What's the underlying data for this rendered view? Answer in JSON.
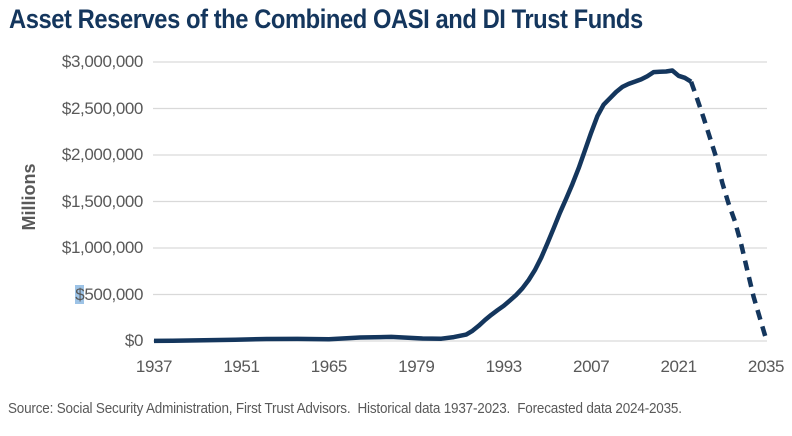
{
  "title": "Asset Reserves of the Combined OASI and DI Trust Funds",
  "source_note": "Source: Social Security Administration, First Trust Advisors.  Historical data 1937-2023.  Forecasted data 2024-2035.",
  "colors": {
    "line_navy": "#14365d",
    "title_navy": "#14365d",
    "gridline_gray": "#d9d9d9",
    "axis_text_gray": "#595959",
    "dollar_highlight_blue": "#9dc3e6"
  },
  "chart_data": {
    "type": "line",
    "title": "Asset Reserves of the Combined OASI and DI Trust Funds",
    "xlabel": "",
    "ylabel": "Millions",
    "ylim": [
      0,
      3000000
    ],
    "x_range": [
      1937,
      2035
    ],
    "grid": "horizontal",
    "legend_position": "none",
    "y_tick_values": [
      0,
      500000,
      1000000,
      1500000,
      2000000,
      2500000,
      3000000
    ],
    "y_tick_labels": [
      "$0",
      "$500,000",
      "$1,000,000",
      "$1,500,000",
      "$2,000,000",
      "$2,500,000",
      "$3,000,000"
    ],
    "highlighted_y_tick": "$500,000",
    "x_tick_labels": [
      "1937",
      "1951",
      "1965",
      "1979",
      "1993",
      "2007",
      "2021",
      "2035"
    ],
    "series": [
      {
        "name": "Historical data 1937-2023",
        "style": "solid",
        "x": [
          1937,
          1940,
          1945,
          1950,
          1955,
          1960,
          1965,
          1970,
          1975,
          1980,
          1983,
          1985,
          1987,
          1988,
          1989,
          1990,
          1991,
          1992,
          1993,
          1994,
          1995,
          1996,
          1997,
          1998,
          1999,
          2000,
          2001,
          2002,
          2003,
          2004,
          2005,
          2006,
          2007,
          2008,
          2009,
          2010,
          2011,
          2012,
          2013,
          2014,
          2015,
          2016,
          2017,
          2018,
          2019,
          2020,
          2021,
          2022,
          2023
        ],
        "y": [
          766,
          2031,
          7121,
          13721,
          21663,
          22613,
          19841,
          38068,
          44342,
          26453,
          24867,
          42163,
          68807,
          109762,
          162968,
          225277,
          280747,
          331473,
          378285,
          436385,
          496068,
          566650,
          655510,
          762462,
          896134,
          1049445,
          1212541,
          1378035,
          1530764,
          1686746,
          1858660,
          2048112,
          2238458,
          2418658,
          2540348,
          2609318,
          2677931,
          2732334,
          2764431,
          2789476,
          2812475,
          2847687,
          2891805,
          2895209,
          2897405,
          2908286,
          2852030,
          2830396,
          2788535
        ]
      },
      {
        "name": "Forecasted data 2024-2035",
        "style": "dashed",
        "x": [
          2023,
          2024,
          2025,
          2026,
          2027,
          2028,
          2029,
          2030,
          2031,
          2032,
          2033,
          2034,
          2035
        ],
        "y": [
          2788535,
          2600000,
          2400000,
          2190000,
          1980000,
          1700000,
          1480000,
          1290000,
          1050000,
          760000,
          480000,
          250000,
          25000
        ]
      }
    ]
  }
}
